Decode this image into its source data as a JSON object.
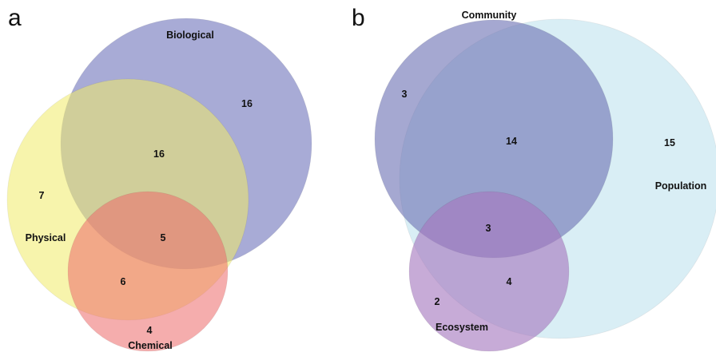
{
  "panels": [
    {
      "letter": "a",
      "sets": [
        {
          "name": "Biological",
          "color": "#7479bd"
        },
        {
          "name": "Physical",
          "color": "#f2ec6a"
        },
        {
          "name": "Chemical",
          "color": "#ee6b6b"
        }
      ],
      "regions": [
        {
          "sets": [
            "Biological"
          ],
          "count": "16"
        },
        {
          "sets": [
            "Biological",
            "Physical"
          ],
          "count": "16"
        },
        {
          "sets": [
            "Physical"
          ],
          "count": "7"
        },
        {
          "sets": [
            "Biological",
            "Physical",
            "Chemical"
          ],
          "count": "5"
        },
        {
          "sets": [
            "Physical",
            "Chemical"
          ],
          "count": "6"
        },
        {
          "sets": [
            "Chemical"
          ],
          "count": "4"
        }
      ]
    },
    {
      "letter": "b",
      "sets": [
        {
          "name": "Community",
          "color": "#6f74b5"
        },
        {
          "name": "Population",
          "color": "#c3e4f0"
        },
        {
          "name": "Ecosystem",
          "color": "#a678bf"
        }
      ],
      "regions": [
        {
          "sets": [
            "Community"
          ],
          "count": "3"
        },
        {
          "sets": [
            "Community",
            "Population"
          ],
          "count": "14"
        },
        {
          "sets": [
            "Population"
          ],
          "count": "15"
        },
        {
          "sets": [
            "Community",
            "Population",
            "Ecosystem"
          ],
          "count": "3"
        },
        {
          "sets": [
            "Population",
            "Ecosystem"
          ],
          "count": "4"
        },
        {
          "sets": [
            "Ecosystem"
          ],
          "count": "2"
        }
      ]
    }
  ]
}
